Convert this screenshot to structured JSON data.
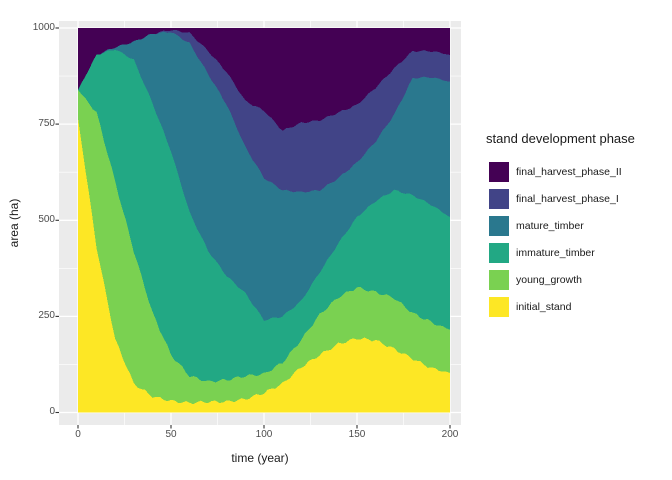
{
  "figure": {
    "bg": "#FFFFFF",
    "panel_bg": "#EBEBEB",
    "grid_color": "#FFFFFF",
    "tick_mark_color": "#333333",
    "tick_label_color": "#4D4D4D",
    "title_color": "#1A1A1A"
  },
  "axes": {
    "x_title": "time (year)",
    "y_title": "area (ha)",
    "x_ticks": [
      "0",
      "50",
      "100",
      "150",
      "200"
    ],
    "y_ticks": [
      "0",
      "250",
      "500",
      "750",
      "1000"
    ]
  },
  "legend": {
    "title": "stand development phase",
    "items": [
      {
        "label": "final_harvest_phase_II",
        "color": "#440154"
      },
      {
        "label": "final_harvest_phase_I",
        "color": "#414487"
      },
      {
        "label": "mature_timber",
        "color": "#2A788E"
      },
      {
        "label": "immature_timber",
        "color": "#22A884"
      },
      {
        "label": "young_growth",
        "color": "#7AD151"
      },
      {
        "label": "initial_stand",
        "color": "#FDE725"
      }
    ]
  },
  "chart_data": {
    "type": "area",
    "stacked": true,
    "title": "",
    "xlabel": "time (year)",
    "ylabel": "area (ha)",
    "xlim": [
      0,
      200
    ],
    "ylim": [
      0,
      1000
    ],
    "grid": true,
    "legend_position": "right",
    "x_tick_values": [
      0,
      50,
      100,
      150,
      200
    ],
    "x_minor_tick_values": [
      25,
      75,
      125,
      175
    ],
    "y_tick_values": [
      0,
      250,
      500,
      750,
      1000
    ],
    "y_minor_tick_values": [
      125,
      375,
      625,
      875
    ],
    "x": [
      0,
      10,
      20,
      30,
      40,
      50,
      60,
      70,
      80,
      90,
      100,
      110,
      120,
      130,
      140,
      150,
      160,
      170,
      180,
      190,
      200
    ],
    "series": [
      {
        "name": "initial_stand",
        "color": "#FDE725",
        "values": [
          766,
          430,
          190,
          75,
          42,
          30,
          25,
          28,
          28,
          35,
          51,
          75,
          118,
          150,
          178,
          193,
          188,
          165,
          140,
          115,
          103
        ]
      },
      {
        "name": "young_growth",
        "color": "#7AD151",
        "values": [
          73,
          350,
          410,
          345,
          218,
          120,
          70,
          52,
          57,
          60,
          49,
          55,
          71,
          105,
          122,
          132,
          125,
          133,
          118,
          120,
          112
        ]
      },
      {
        "name": "immature_timber",
        "color": "#22A884",
        "values": [
          0,
          150,
          345,
          497,
          545,
          530,
          425,
          340,
          270,
          215,
          140,
          120,
          101,
          110,
          140,
          183,
          237,
          280,
          307,
          305,
          293
        ]
      },
      {
        "name": "mature_timber",
        "color": "#2A788E",
        "values": [
          0,
          0,
          5,
          47,
          180,
          310,
          440,
          460,
          445,
          380,
          370,
          328,
          283,
          213,
          170,
          142,
          155,
          197,
          305,
          332,
          352
        ]
      },
      {
        "name": "final_harvest_phase_I",
        "color": "#414487",
        "values": [
          0,
          0,
          0,
          0,
          0,
          5,
          27,
          60,
          85,
          120,
          175,
          155,
          180,
          182,
          170,
          150,
          140,
          120,
          70,
          68,
          70
        ]
      },
      {
        "name": "final_harvest_phase_II",
        "color": "#440154",
        "values": [
          161,
          70,
          50,
          36,
          15,
          5,
          13,
          60,
          115,
          190,
          215,
          267,
          247,
          240,
          220,
          200,
          155,
          105,
          60,
          60,
          70
        ]
      }
    ]
  }
}
